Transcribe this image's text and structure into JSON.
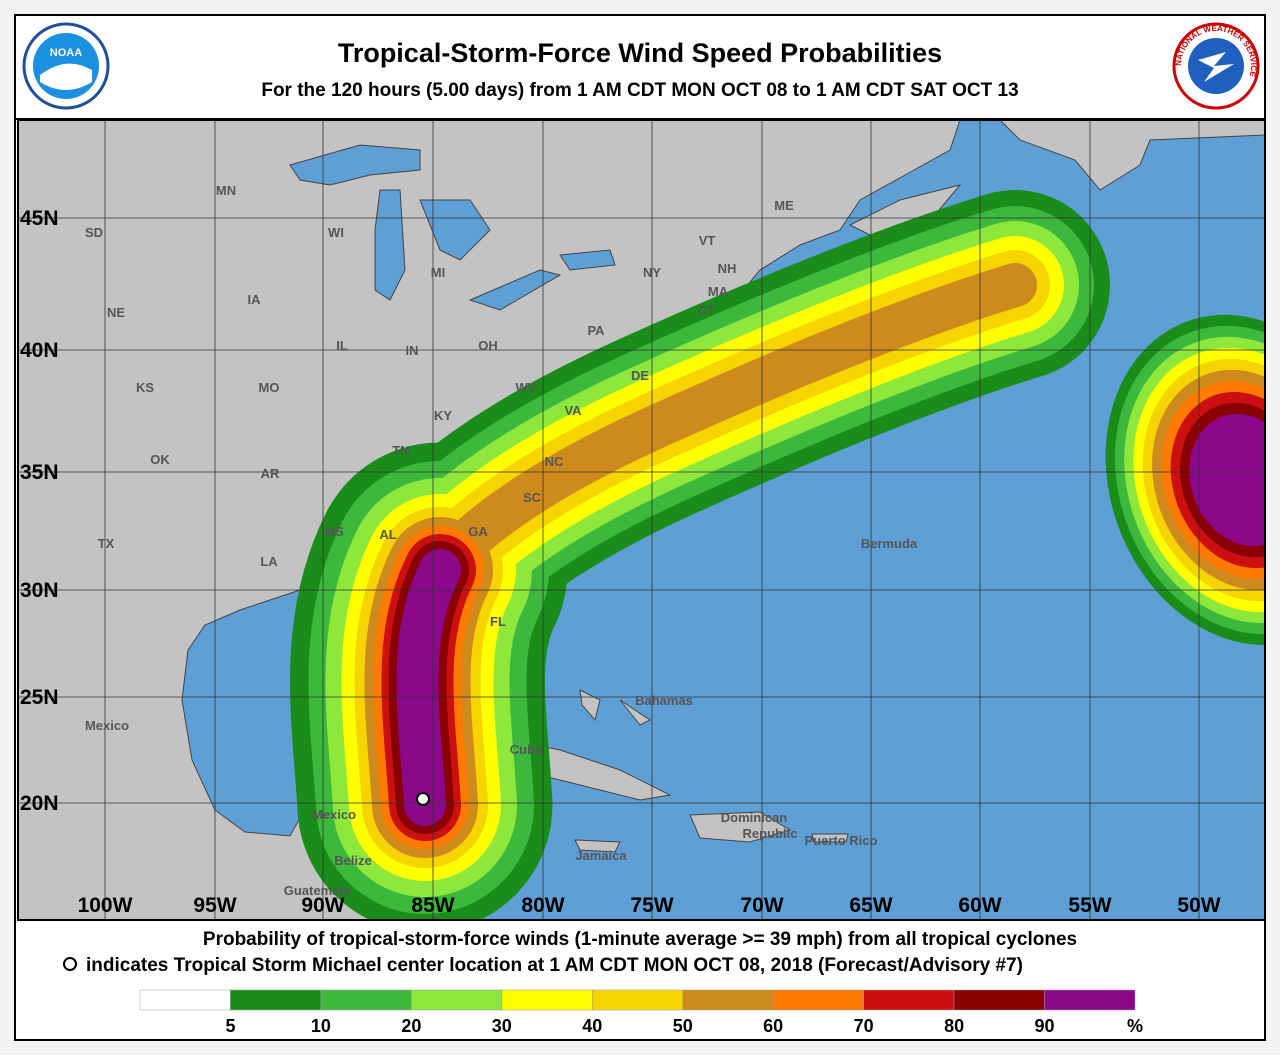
{
  "header": {
    "title": "Tropical-Storm-Force Wind Speed Probabilities",
    "subtitle": "For the 120 hours (5.00 days) from 1 AM CDT MON OCT 08 to 1 AM CDT SAT OCT 13",
    "logo_left": "NOAA",
    "logo_right": "NATIONAL WEATHER SERVICE"
  },
  "map": {
    "lat_labels": [
      "45N",
      "40N",
      "35N",
      "30N",
      "25N",
      "20N"
    ],
    "lon_labels": [
      "100W",
      "95W",
      "90W",
      "85W",
      "80W",
      "75W",
      "70W",
      "65W",
      "60W",
      "55W",
      "50W"
    ],
    "place_labels": [
      "MN",
      "WI",
      "SD",
      "MI",
      "NY",
      "VT",
      "NH",
      "ME",
      "MA",
      "CT",
      "NE",
      "IA",
      "PA",
      "IL",
      "IN",
      "OH",
      "KS",
      "MO",
      "WV",
      "DE",
      "VA",
      "KY",
      "OK",
      "AR",
      "TN",
      "NC",
      "SC",
      "TX",
      "MS",
      "AL",
      "GA",
      "LA",
      "FL",
      "Bermuda",
      "Bahamas",
      "Mexico",
      "Cuba",
      "Mexico",
      "Belize",
      "Dominican",
      "Republic",
      "Puerto Rico",
      "Jamaica",
      "Guatemala"
    ]
  },
  "footer": {
    "line1": "Probability of tropical-storm-force winds (1-minute average >= 39 mph) from all tropical cyclones",
    "line2": "indicates Tropical Storm Michael center location at 1 AM CDT MON OCT 08, 2018 (Forecast/Advisory #7)"
  },
  "legend": {
    "colors": [
      "#ffffff",
      "#1a8c1a",
      "#3cb83c",
      "#8ee83c",
      "#ffff00",
      "#f5d400",
      "#cf8a1e",
      "#ff7a00",
      "#cc1010",
      "#8b0000",
      "#8b088b"
    ],
    "ticks": [
      5,
      10,
      20,
      30,
      40,
      50,
      60,
      70,
      80,
      90
    ],
    "unit": "%"
  }
}
